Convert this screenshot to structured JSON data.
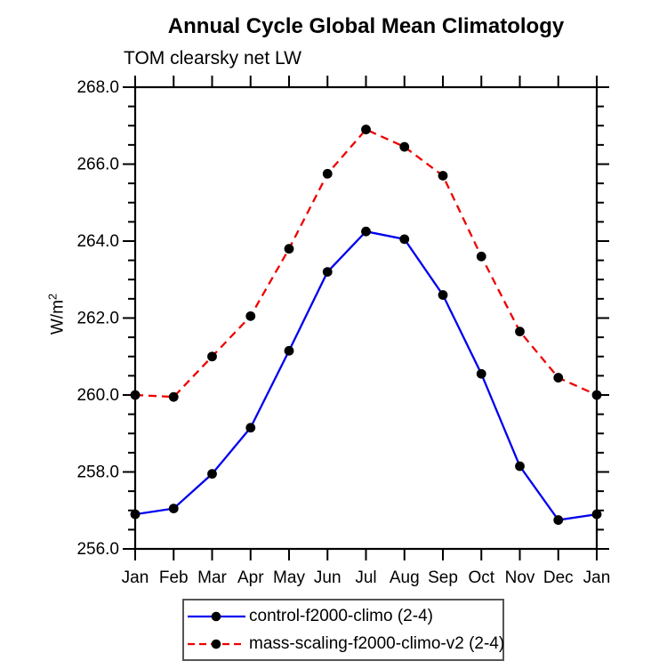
{
  "page": {
    "title": "Annual Cycle Global Mean Climatology",
    "subtitle": "TOM clearsky net LW",
    "ylabel_base": "W/m",
    "ylabel_exponent": "2"
  },
  "chart_data": {
    "type": "line",
    "title": "Annual Cycle Global Mean Climatology",
    "subtitle": "TOM clearsky net LW",
    "xlabel": "",
    "ylabel": "W/m^2",
    "categories": [
      "Jan",
      "Feb",
      "Mar",
      "Apr",
      "May",
      "Jun",
      "Jul",
      "Aug",
      "Sep",
      "Oct",
      "Nov",
      "Dec",
      "Jan"
    ],
    "ylim": [
      256.0,
      268.0
    ],
    "yticks": [
      256.0,
      258.0,
      260.0,
      262.0,
      264.0,
      266.0,
      268.0
    ],
    "ytick_labels": [
      "256.0",
      "258.0",
      "260.0",
      "262.0",
      "264.0",
      "266.0",
      "268.0"
    ],
    "yminor_interval": 0.5,
    "grid": false,
    "legend_position": "bottom-center",
    "axis_color": "#000000",
    "marker_color": "#000000",
    "series": [
      {
        "name": "control-f2000-climo (2-4)",
        "color": "#0000ee",
        "style": "solid",
        "marker": "circle",
        "values": [
          256.9,
          257.05,
          257.95,
          259.15,
          261.15,
          263.2,
          264.25,
          264.05,
          262.6,
          260.55,
          258.15,
          256.75,
          256.9
        ]
      },
      {
        "name": "mass-scaling-f2000-climo-v2 (2-4)",
        "color": "#ee0000",
        "style": "dashed",
        "marker": "circle",
        "values": [
          260.0,
          259.95,
          261.0,
          262.05,
          263.8,
          265.75,
          266.9,
          266.45,
          265.7,
          263.6,
          261.65,
          260.45,
          260.0
        ]
      }
    ]
  }
}
